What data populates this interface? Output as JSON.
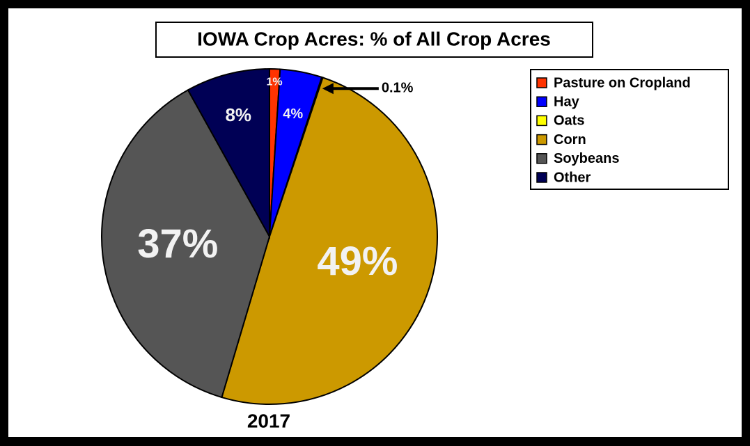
{
  "chart_data": {
    "type": "pie",
    "title": "IOWA Crop Acres:  % of All Crop Acres",
    "subtitle": "2017",
    "categories": [
      "Pasture on Cropland",
      "Hay",
      "Oats",
      "Corn",
      "Soybeans",
      "Other"
    ],
    "values": [
      1,
      4,
      0.1,
      49,
      37,
      8
    ],
    "value_labels": [
      "1%",
      "4%",
      "0.1%",
      "49%",
      "37%",
      "8%"
    ],
    "colors": [
      "#ff3300",
      "#0000ff",
      "#ffff00",
      "#cc9900",
      "#555555",
      "#000055"
    ],
    "legend": "upper right"
  }
}
